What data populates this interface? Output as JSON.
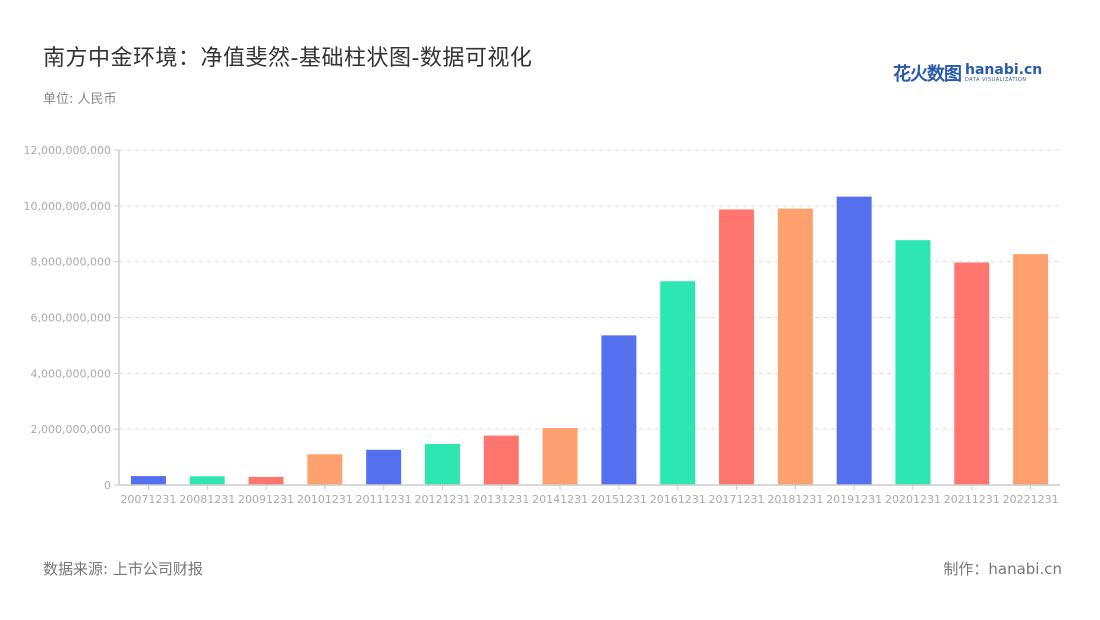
{
  "header": {
    "title": "南方中金环境：净值斐然-基础柱状图-数据可视化",
    "unit": "单位: 人民币",
    "logo_cn": "花火数图",
    "logo_en": "hanabi.cn",
    "logo_sub": "DATA VISUALIZATION"
  },
  "footer": {
    "source": "数据来源: 上市公司财报",
    "credit": "制作：hanabi.cn"
  },
  "colors": {
    "palette": [
      "#5470ec",
      "#2ee6b0",
      "#ff766f",
      "#ffa06f"
    ],
    "grid": "#dddddd",
    "axis": "#cccccc"
  },
  "chart_data": {
    "type": "bar",
    "title": "南方中金环境：净值斐然-基础柱状图-数据可视化",
    "xlabel": "",
    "ylabel": "单位: 人民币",
    "ylim": [
      0,
      12000000000
    ],
    "yticks": [
      0,
      2000000000,
      4000000000,
      6000000000,
      8000000000,
      10000000000,
      12000000000
    ],
    "ytick_labels": [
      "0",
      "2,000,000,000",
      "4,000,000,000",
      "6,000,000,000",
      "8,000,000,000",
      "10,000,000,000",
      "12,000,000,000"
    ],
    "grid": true,
    "legend": "none",
    "categories": [
      "20071231",
      "20081231",
      "20091231",
      "20101231",
      "20111231",
      "20121231",
      "20131231",
      "20141231",
      "20151231",
      "20161231",
      "20171231",
      "20181231",
      "20191231",
      "20201231",
      "20211231",
      "20221231"
    ],
    "values": [
      320000000,
      310000000,
      290000000,
      1100000000,
      1260000000,
      1470000000,
      1770000000,
      2040000000,
      5360000000,
      7300000000,
      9870000000,
      9900000000,
      10330000000,
      8770000000,
      7970000000,
      8270000000
    ]
  }
}
